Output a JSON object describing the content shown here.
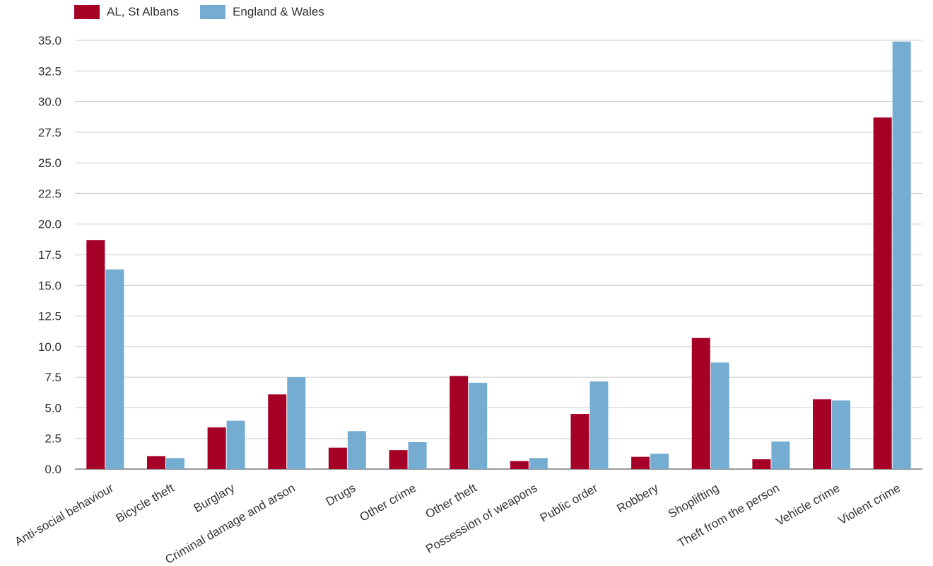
{
  "chart_data": {
    "type": "bar",
    "categories": [
      "Anti-social behaviour",
      "Bicycle theft",
      "Burglary",
      "Criminal damage and arson",
      "Drugs",
      "Other crime",
      "Other theft",
      "Possession of weapons",
      "Public order",
      "Robbery",
      "Shoplifting",
      "Theft from the person",
      "Vehicle crime",
      "Violent crime"
    ],
    "series": [
      {
        "name": "AL, St Albans",
        "color": "#a50026",
        "values": [
          18.7,
          1.05,
          3.4,
          6.1,
          1.75,
          1.55,
          7.6,
          0.65,
          4.5,
          1.0,
          10.7,
          0.8,
          5.7,
          28.7
        ]
      },
      {
        "name": "England & Wales",
        "color": "#74add1",
        "values": [
          16.3,
          0.9,
          3.95,
          7.5,
          3.1,
          2.2,
          7.05,
          0.9,
          7.15,
          1.25,
          8.7,
          2.25,
          5.6,
          34.9
        ]
      }
    ],
    "y_ticks": [
      "0.0",
      "2.5",
      "5.0",
      "7.5",
      "10.0",
      "12.5",
      "15.0",
      "17.5",
      "20.0",
      "22.5",
      "25.0",
      "27.5",
      "30.0",
      "32.5",
      "35.0"
    ],
    "ylim": [
      0,
      35
    ],
    "grid": true,
    "legend_position": "top-left"
  }
}
